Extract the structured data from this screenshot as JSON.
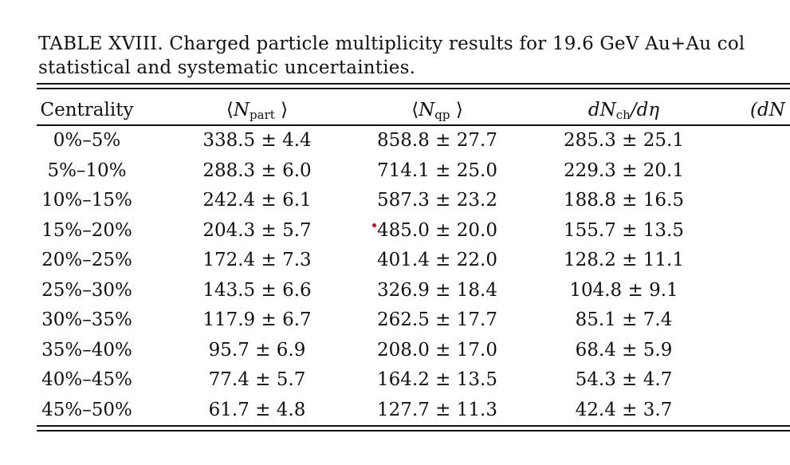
{
  "caption": {
    "line1": "TABLE XVIII. Charged particle multiplicity results for 19.6 GeV Au+Au col",
    "line2": "statistical and systematic uncertainties."
  },
  "table": {
    "headers": {
      "centrality": "Centrality",
      "npart_open": "⟨",
      "npart_sym": "N",
      "npart_sub": "part",
      "npart_close": "⟩",
      "nqp_open": "⟨",
      "nqp_sym": "N",
      "nqp_sub": "qp",
      "nqp_close": "⟩",
      "dn_pre": "dN",
      "dn_sub": "ch",
      "dn_post": "/dη",
      "col5_partial": "(dN"
    },
    "rows": [
      {
        "centrality": "0%–5%",
        "npart": "338.5 ± 4.4",
        "nqp": "858.8 ± 27.7",
        "dndeta": "285.3 ± 25.1"
      },
      {
        "centrality": "5%–10%",
        "npart": "288.3 ± 6.0",
        "nqp": "714.1 ± 25.0",
        "dndeta": "229.3 ± 20.1"
      },
      {
        "centrality": "10%–15%",
        "npart": "242.4 ± 6.1",
        "nqp": "587.3 ± 23.2",
        "dndeta": "188.8 ± 16.5"
      },
      {
        "centrality": "15%–20%",
        "npart": "204.3 ± 5.7",
        "nqp": "485.0 ± 20.0",
        "dndeta": "155.7 ± 13.5"
      },
      {
        "centrality": "20%–25%",
        "npart": "172.4 ± 7.3",
        "nqp": "401.4 ± 22.0",
        "dndeta": "128.2 ± 11.1"
      },
      {
        "centrality": "25%–30%",
        "npart": "143.5 ± 6.6",
        "nqp": "326.9 ± 18.4",
        "dndeta": "104.8 ± 9.1"
      },
      {
        "centrality": "30%–35%",
        "npart": "117.9 ± 6.7",
        "nqp": "262.5 ± 17.7",
        "dndeta": "85.1 ± 7.4"
      },
      {
        "centrality": "35%–40%",
        "npart": "95.7 ± 6.9",
        "nqp": "208.0 ± 17.0",
        "dndeta": "68.4 ± 5.9"
      },
      {
        "centrality": "40%–45%",
        "npart": "77.4 ± 5.7",
        "nqp": "164.2 ± 13.5",
        "dndeta": "54.3 ± 4.7"
      },
      {
        "centrality": "45%–50%",
        "npart": "61.7 ± 4.8",
        "nqp": "127.7 ± 11.3",
        "dndeta": "42.4 ± 3.7"
      }
    ]
  },
  "colors": {
    "text": "#111111",
    "rule": "#111111",
    "marker": "#d9001a"
  }
}
